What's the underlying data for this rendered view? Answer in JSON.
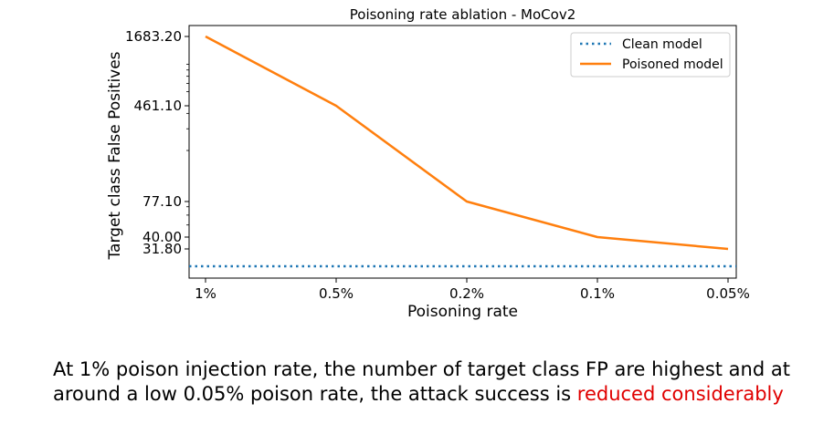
{
  "chart_data": {
    "type": "line",
    "title": "Poisoning rate ablation - MoCov2",
    "xlabel": "Poisoning rate",
    "ylabel": "Target class False Positives",
    "categories": [
      "1%",
      "0.5%",
      "0.2%",
      "0.1%",
      "0.05%"
    ],
    "yscale": "log",
    "yticks": [
      31.8,
      40.0,
      77.1,
      461.1,
      1683.2
    ],
    "ytick_labels": [
      "31.80",
      "40.00",
      "77.10",
      "461.10",
      "1683.20"
    ],
    "series": [
      {
        "name": "Clean model",
        "style": "dotted",
        "color": "#1f77b4",
        "constant": 22.5
      },
      {
        "name": "Poisoned model",
        "style": "solid",
        "color": "#ff7f0e",
        "values": [
          1683.2,
          461.1,
          77.1,
          40.0,
          31.8
        ]
      }
    ],
    "legend": "top-right",
    "grid": false
  },
  "caption": {
    "line1": "At 1% poison injection rate, the number of target class FP are highest and at",
    "line2_prefix": "around a low 0.05% poison rate, the attack success is ",
    "line2_highlight": "reduced considerably"
  },
  "colors": {
    "highlight": "#e00000"
  }
}
